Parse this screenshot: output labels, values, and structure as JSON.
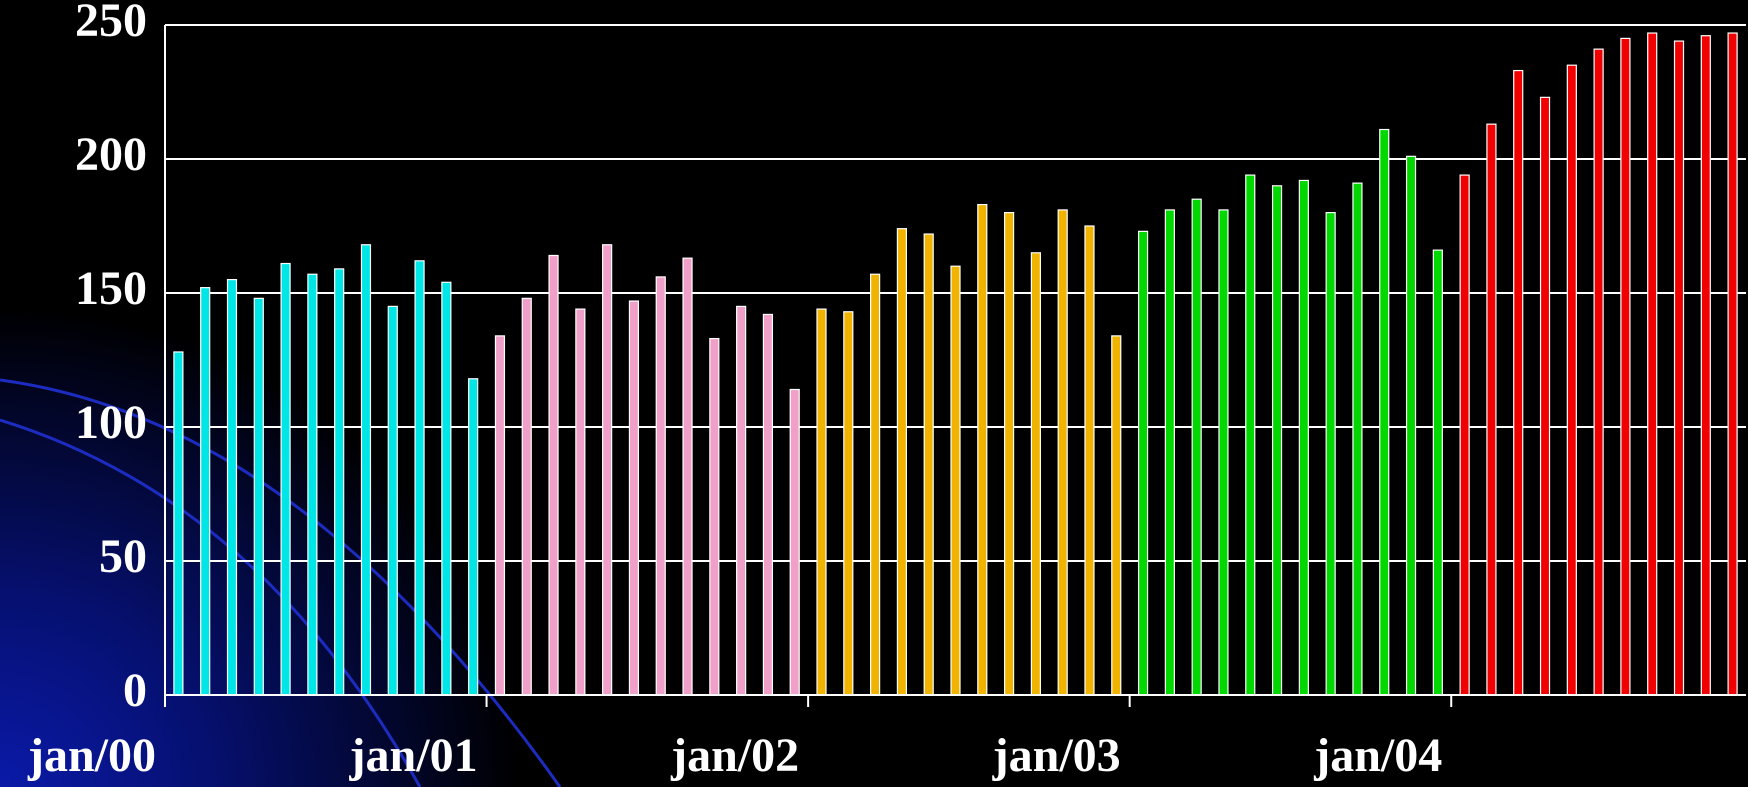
{
  "chart_data": {
    "type": "bar",
    "categories": [
      "jan/00",
      null,
      null,
      null,
      null,
      null,
      null,
      null,
      null,
      null,
      null,
      null,
      "jan/01",
      null,
      null,
      null,
      null,
      null,
      null,
      null,
      null,
      null,
      null,
      null,
      "jan/02",
      null,
      null,
      null,
      null,
      null,
      null,
      null,
      null,
      null,
      null,
      null,
      "jan/03",
      null,
      null,
      null,
      null,
      null,
      null,
      null,
      null,
      null,
      null,
      null,
      "jan/04",
      null,
      null,
      null,
      null,
      null,
      null,
      null,
      null,
      null,
      null
    ],
    "values": [
      128,
      152,
      155,
      148,
      161,
      157,
      159,
      168,
      145,
      162,
      154,
      118,
      134,
      148,
      164,
      144,
      168,
      147,
      156,
      163,
      133,
      145,
      142,
      114,
      144,
      143,
      157,
      174,
      172,
      160,
      183,
      180,
      165,
      181,
      175,
      134,
      173,
      181,
      185,
      181,
      194,
      190,
      192,
      180,
      191,
      211,
      201,
      166,
      194,
      213,
      233,
      223,
      235,
      241,
      245,
      247,
      244,
      246,
      247
    ],
    "colors": [
      "#00e5e5",
      "#f0a0c8",
      "#f0b400",
      "#00d800",
      "#f00000"
    ],
    "ylim": [
      0,
      250
    ],
    "yticks": [
      0,
      50,
      100,
      150,
      200,
      250
    ],
    "grid": true
  }
}
